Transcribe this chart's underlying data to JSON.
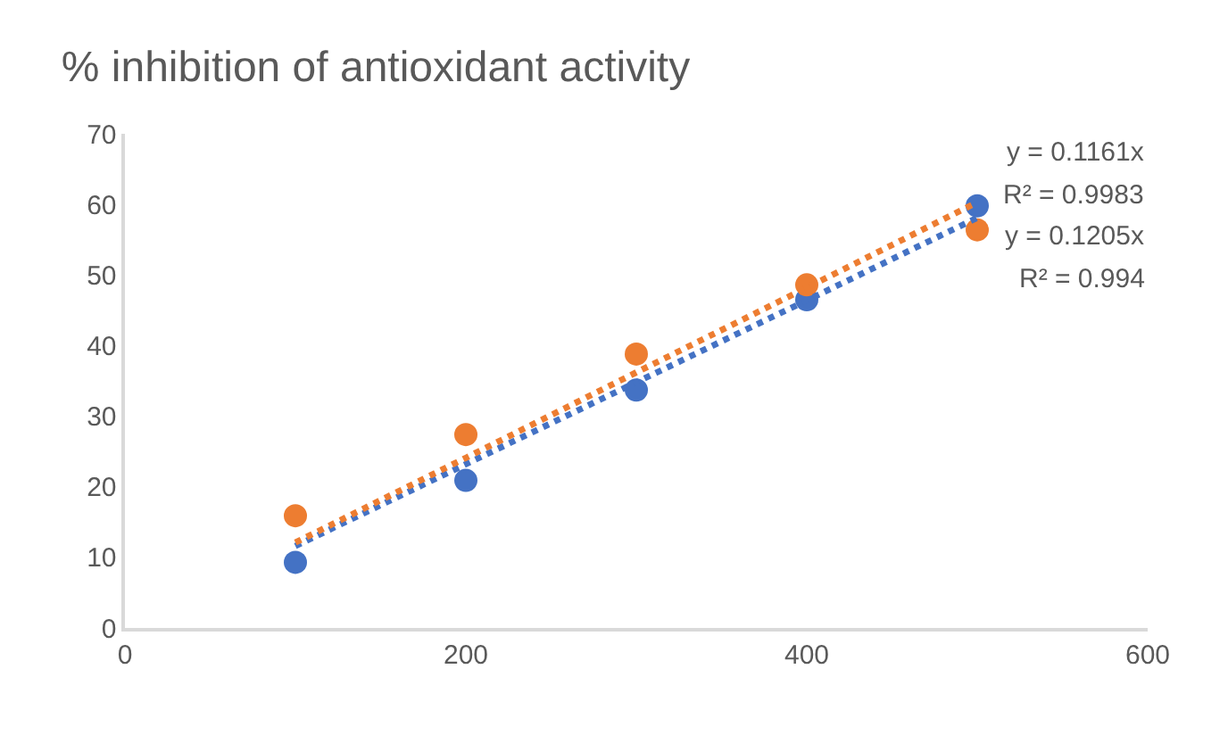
{
  "chart_data": {
    "type": "scatter",
    "title": "% inhibition of antioxidant activity",
    "x": [
      100,
      200,
      300,
      400,
      500
    ],
    "series": [
      {
        "color": "#4472c4",
        "values": [
          9.3,
          20.9,
          33.7,
          46.5,
          59.8
        ],
        "marker": "circle"
      },
      {
        "color": "#ed7d31",
        "values": [
          15.9,
          27.4,
          38.8,
          48.6,
          56.4
        ],
        "marker": "circle"
      },
      {
        "type": "line",
        "color": "#4472c4",
        "values": [
          11.6,
          23.2,
          34.8,
          46.4,
          58.1
        ],
        "line_style": "dotted"
      },
      {
        "type": "line",
        "color": "#ed7d31",
        "values": [
          12.1,
          24.1,
          36.2,
          48.2,
          60.3
        ],
        "line_style": "dotted"
      }
    ],
    "annotations": [
      "y = 0.1161x",
      "R² = 0.9983",
      "y = 0.1205x",
      "R² = 0.994"
    ],
    "xlim": [
      0,
      600
    ],
    "xticks": [
      0,
      200,
      400,
      600
    ],
    "ylim": [
      0,
      70
    ],
    "yticks": [
      0,
      10,
      20,
      30,
      40,
      50,
      60,
      70
    ],
    "grid": false
  }
}
